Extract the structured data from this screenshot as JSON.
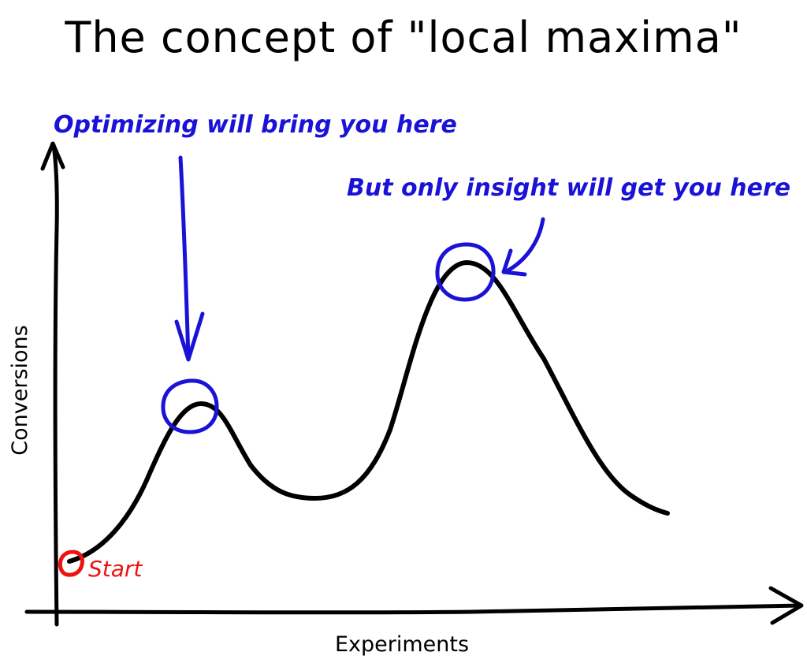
{
  "title": "The concept of \"local maxima\"",
  "annotations": {
    "local_peak": "Optimizing will bring you here",
    "global_peak": "But only insight will get you here"
  },
  "axes": {
    "x_label": "Experiments",
    "y_label": "Conversions"
  },
  "start_label": "Start",
  "colors": {
    "ink": "#000000",
    "annotation": "#1a12d6",
    "start": "#ee1111",
    "background": "#ffffff"
  }
}
